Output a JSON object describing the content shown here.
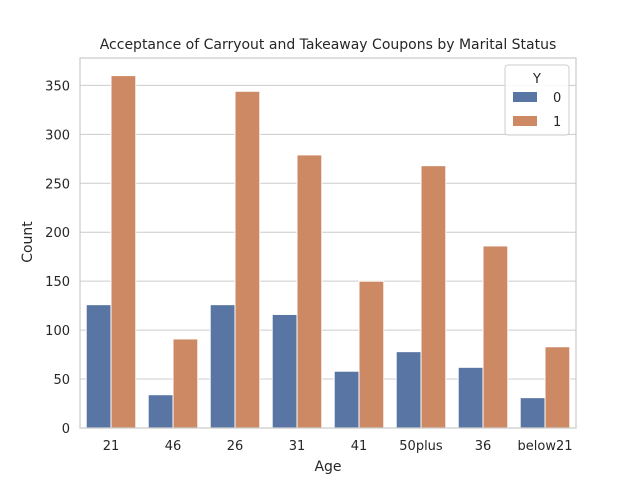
{
  "chart_data": {
    "type": "bar",
    "title": "Acceptance of Carryout and Takeaway Coupons by Marital Status",
    "xlabel": "Age",
    "ylabel": "Count",
    "categories": [
      "21",
      "46",
      "26",
      "31",
      "41",
      "50plus",
      "36",
      "below21"
    ],
    "series": [
      {
        "name": "0",
        "values": [
          126,
          34,
          126,
          116,
          58,
          78,
          62,
          31
        ]
      },
      {
        "name": "1",
        "values": [
          360,
          91,
          344,
          279,
          150,
          268,
          186,
          83
        ]
      }
    ],
    "ylim": [
      0,
      378
    ],
    "yticks": [
      0,
      50,
      100,
      150,
      200,
      250,
      300,
      350
    ],
    "grid": true,
    "legend": {
      "title": "Y",
      "position": "top-right"
    },
    "colors": [
      "#5975a4",
      "#cc8963"
    ]
  }
}
